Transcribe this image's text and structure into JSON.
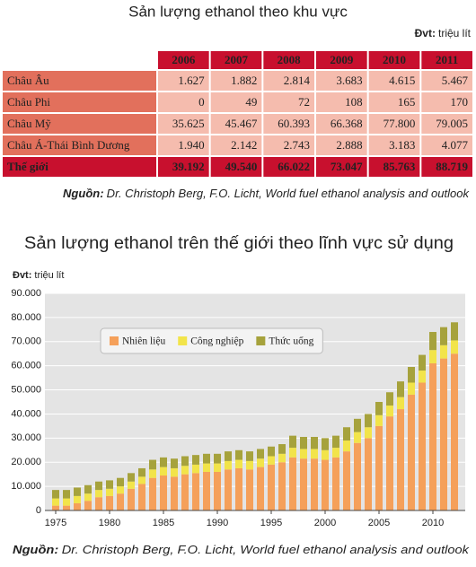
{
  "table": {
    "title": "Sản lượng ethanol theo khu vực",
    "unit_label": "Đvt:",
    "unit": "triệu lít",
    "columns": [
      "2006",
      "2007",
      "2008",
      "2009",
      "2010",
      "2011"
    ],
    "rows": [
      [
        "Châu Âu",
        "1.627",
        "1.882",
        "2.814",
        "3.683",
        "4.615",
        "5.467"
      ],
      [
        "Châu Phi",
        "0",
        "49",
        "72",
        "108",
        "165",
        "170"
      ],
      [
        "Châu Mỹ",
        "35.625",
        "45.467",
        "60.393",
        "66.368",
        "77.800",
        "79.005"
      ],
      [
        "Châu Á-Thái Bình Dương",
        "1.940",
        "2.142",
        "2.743",
        "2.888",
        "3.183",
        "4.077"
      ],
      [
        "Thế giới",
        "39.192",
        "49.540",
        "66.022",
        "73.047",
        "85.763",
        "88.719"
      ]
    ],
    "source_label": "Nguồn:",
    "source": "Dr. Christoph Berg, F.O. Licht, World fuel ethanol analysis and outlook"
  },
  "chart_data": {
    "type": "bar",
    "stacked": true,
    "title": "Sản lượng ethanol trên thế giới theo lĩnh vực sử dụng",
    "unit_label": "Đvt:",
    "unit": "triệu lít",
    "x": [
      1975,
      1976,
      1977,
      1978,
      1979,
      1980,
      1981,
      1982,
      1983,
      1984,
      1985,
      1986,
      1987,
      1988,
      1989,
      1990,
      1991,
      1992,
      1993,
      1994,
      1995,
      1996,
      1997,
      1998,
      1999,
      2000,
      2001,
      2002,
      2003,
      2004,
      2005,
      2006,
      2007,
      2008,
      2009,
      2010,
      2011,
      2012
    ],
    "series": [
      {
        "name": "Nhiên liệu",
        "color": "#f5a05a",
        "values": [
          2000,
          2000,
          3000,
          4000,
          5500,
          6000,
          7000,
          9000,
          11000,
          13500,
          14500,
          14000,
          15000,
          15500,
          16000,
          16000,
          17000,
          17500,
          17000,
          18000,
          19000,
          20000,
          22000,
          21500,
          21500,
          21000,
          22000,
          24500,
          28000,
          30000,
          35000,
          39000,
          42000,
          48000,
          53000,
          61000,
          63000,
          65000
        ]
      },
      {
        "name": "Công nghiệp",
        "color": "#f2e44a",
        "values": [
          3000,
          3000,
          3000,
          3000,
          3000,
          3000,
          3000,
          3000,
          3000,
          3500,
          3500,
          3500,
          3500,
          3500,
          3500,
          3500,
          3500,
          3500,
          3500,
          3500,
          3500,
          3500,
          4000,
          4000,
          4000,
          4000,
          4000,
          4500,
          4500,
          4500,
          4500,
          4500,
          5000,
          5000,
          5000,
          5500,
          5500,
          5500
        ]
      },
      {
        "name": "Thức uống",
        "color": "#a6a23c",
        "values": [
          3500,
          3500,
          3500,
          3500,
          3500,
          3500,
          3500,
          3500,
          3500,
          4000,
          4000,
          4000,
          4000,
          4000,
          4000,
          4000,
          4000,
          4000,
          4000,
          4000,
          4000,
          4000,
          5000,
          5000,
          5000,
          5000,
          5000,
          5500,
          5500,
          5500,
          5500,
          5500,
          6500,
          6500,
          6500,
          7500,
          7500,
          7500
        ]
      }
    ],
    "xlim": [
      1974,
      2013
    ],
    "xticks": [
      1975,
      1980,
      1985,
      1990,
      1995,
      2000,
      2005,
      2010
    ],
    "ylim": [
      0,
      90000
    ],
    "yticks": [
      0,
      {
        "value": 10000,
        "label": "10.000"
      },
      {
        "value": 20000,
        "label": "20.000"
      },
      {
        "value": 30000,
        "label": "30.000"
      },
      {
        "value": 40000,
        "label": "40.000"
      },
      {
        "value": 50000,
        "label": "50.000"
      },
      {
        "value": 60000,
        "label": "60.000"
      },
      {
        "value": 70000,
        "label": "70.000"
      },
      {
        "value": 80000,
        "label": "80.000"
      },
      {
        "value": 90000,
        "label": "90.000"
      }
    ],
    "grid": true,
    "legend": "upper left",
    "source_label": "Nguồn:",
    "source": "Dr. Christoph Berg, F.O. Licht, World fuel ethanol analysis and outlook"
  }
}
